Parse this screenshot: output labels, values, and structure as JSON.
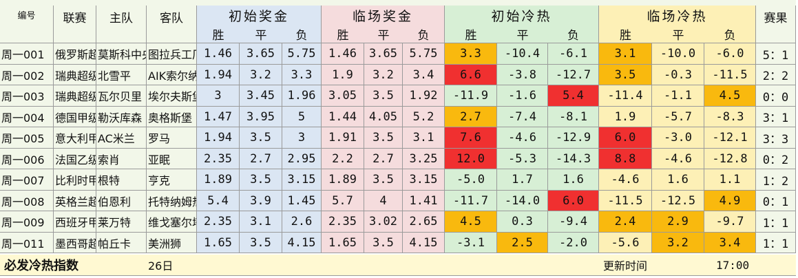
{
  "header": {
    "id_label": "编号",
    "league_label": "联赛",
    "home_label": "主队",
    "away_label": "客队",
    "groups": [
      "初始奖金",
      "临场奖金",
      "初始冷热",
      "临场冷热"
    ],
    "sub_labels": [
      "胜",
      "平",
      "负"
    ],
    "result_label": "赛果"
  },
  "colors": {
    "base_bg": "#f2f7e9",
    "initial_odds_bg": "#dbe6f3",
    "live_odds_bg": "#f5dcdd",
    "initial_heat_bg": "#d7efd5",
    "live_heat_bg": "#fdf0b6",
    "result_bg": "#f2f7e9",
    "footer_bg": "#fff9d2",
    "hot_red": "#f03030",
    "warm_orange": "#f9b90e"
  },
  "rows": [
    {
      "id": "周一001",
      "league": "俄罗斯超",
      "home": "莫斯科中央陆军",
      "away": "图拉兵工厂",
      "init_odds": [
        "1.46",
        "3.65",
        "5.75"
      ],
      "live_odds": [
        "1.46",
        "3.65",
        "5.75"
      ],
      "init_heat": [
        "3.3",
        "-10.4",
        "-6.1"
      ],
      "live_heat": [
        "3.1",
        "-10.0",
        "-6.0"
      ],
      "init_mark": [
        "orange",
        "",
        ""
      ],
      "live_mark": [
        "orange",
        "",
        ""
      ],
      "result": "5：1"
    },
    {
      "id": "周一002",
      "league": "瑞典超级",
      "home": "北雪平",
      "away": "AIK索尔纳",
      "init_odds": [
        "1.94",
        "3.2",
        "3.3"
      ],
      "live_odds": [
        "1.9",
        "3.2",
        "3.4"
      ],
      "init_heat": [
        "6.6",
        "-3.8",
        "-12.7"
      ],
      "live_heat": [
        "3.5",
        "-0.3",
        "-11.5"
      ],
      "init_mark": [
        "red",
        "",
        ""
      ],
      "live_mark": [
        "orange",
        "",
        ""
      ],
      "result": "2：2"
    },
    {
      "id": "周一003",
      "league": "瑞典超级",
      "home": "瓦尔贝里",
      "away": "埃尔夫斯堡",
      "init_odds": [
        "3",
        "3.45",
        "1.96"
      ],
      "live_odds": [
        "3.05",
        "3.5",
        "1.92"
      ],
      "init_heat": [
        "-11.9",
        "-1.6",
        "5.4"
      ],
      "live_heat": [
        "-11.4",
        "-1.1",
        "4.5"
      ],
      "init_mark": [
        "",
        "",
        "red"
      ],
      "live_mark": [
        "",
        "",
        "orange"
      ],
      "result": "0：0"
    },
    {
      "id": "周一004",
      "league": "德国甲级",
      "home": "勒沃库森",
      "away": "奥格斯堡",
      "init_odds": [
        "1.47",
        "3.95",
        "5"
      ],
      "live_odds": [
        "1.44",
        "4.05",
        "5.2"
      ],
      "init_heat": [
        "2.7",
        "-7.4",
        "-8.1"
      ],
      "live_heat": [
        "1.9",
        "-5.7",
        "-8.3"
      ],
      "init_mark": [
        "orange",
        "",
        ""
      ],
      "live_mark": [
        "",
        "",
        ""
      ],
      "result": "3：1"
    },
    {
      "id": "周一005",
      "league": "意大利甲",
      "home": "AC米兰",
      "away": "罗马",
      "init_odds": [
        "1.94",
        "3.5",
        "3"
      ],
      "live_odds": [
        "1.91",
        "3.5",
        "3.1"
      ],
      "init_heat": [
        "7.6",
        "-4.6",
        "-12.9"
      ],
      "live_heat": [
        "6.0",
        "-3.0",
        "-12.1"
      ],
      "init_mark": [
        "red",
        "",
        ""
      ],
      "live_mark": [
        "red",
        "",
        ""
      ],
      "result": "3：3"
    },
    {
      "id": "周一006",
      "league": "法国乙级",
      "home": "索肖",
      "away": "亚眠",
      "init_odds": [
        "2.35",
        "2.7",
        "2.95"
      ],
      "live_odds": [
        "2.2",
        "2.7",
        "3.25"
      ],
      "init_heat": [
        "12.0",
        "-5.3",
        "-14.3"
      ],
      "live_heat": [
        "8.8",
        "-4.6",
        "-12.8"
      ],
      "init_mark": [
        "red",
        "",
        ""
      ],
      "live_mark": [
        "red",
        "",
        ""
      ],
      "result": "0：2"
    },
    {
      "id": "周一007",
      "league": "比利时甲",
      "home": "根特",
      "away": "亨克",
      "init_odds": [
        "1.89",
        "3.5",
        "3.15"
      ],
      "live_odds": [
        "1.89",
        "3.5",
        "3.15"
      ],
      "init_heat": [
        "-5.0",
        "1.7",
        "1.6"
      ],
      "live_heat": [
        "-4.6",
        "1.6",
        "1.1"
      ],
      "init_mark": [
        "",
        "",
        ""
      ],
      "live_mark": [
        "",
        "",
        ""
      ],
      "result": "1：2"
    },
    {
      "id": "周一008",
      "league": "英格兰超",
      "home": "伯恩利",
      "away": "托特纳姆热刺",
      "init_odds": [
        "5.4",
        "3.9",
        "1.45"
      ],
      "live_odds": [
        "5.7",
        "4",
        "1.41"
      ],
      "init_heat": [
        "-11.7",
        "-14.0",
        "6.0"
      ],
      "live_heat": [
        "-11.5",
        "-12.5",
        "4.9"
      ],
      "init_mark": [
        "",
        "",
        "red"
      ],
      "live_mark": [
        "",
        "",
        "orange"
      ],
      "result": "0：1"
    },
    {
      "id": "周一009",
      "league": "西班牙甲",
      "home": "莱万特",
      "away": "维戈塞尔塔",
      "init_odds": [
        "2.35",
        "3.1",
        "2.6"
      ],
      "live_odds": [
        "2.35",
        "3.02",
        "2.65"
      ],
      "init_heat": [
        "4.5",
        "0.3",
        "-9.4"
      ],
      "live_heat": [
        "2.4",
        "2.9",
        "-9.7"
      ],
      "init_mark": [
        "orange",
        "",
        ""
      ],
      "live_mark": [
        "orange",
        "orange",
        ""
      ],
      "result": "1：1"
    },
    {
      "id": "周一011",
      "league": "墨西哥超",
      "home": "帕丘卡",
      "away": "美洲狮",
      "init_odds": [
        "1.65",
        "3.5",
        "4.15"
      ],
      "live_odds": [
        "1.65",
        "3.5",
        "4.15"
      ],
      "init_heat": [
        "-3.1",
        "2.5",
        "-2.0"
      ],
      "live_heat": [
        "-5.6",
        "3.2",
        "3.4"
      ],
      "init_mark": [
        "",
        "orange",
        ""
      ],
      "live_mark": [
        "",
        "orange",
        "orange"
      ],
      "result": "1：1"
    }
  ],
  "footer": {
    "title": "必发冷热指数",
    "date": "26日",
    "update_label": "更新时间",
    "update_time": "17:00"
  }
}
